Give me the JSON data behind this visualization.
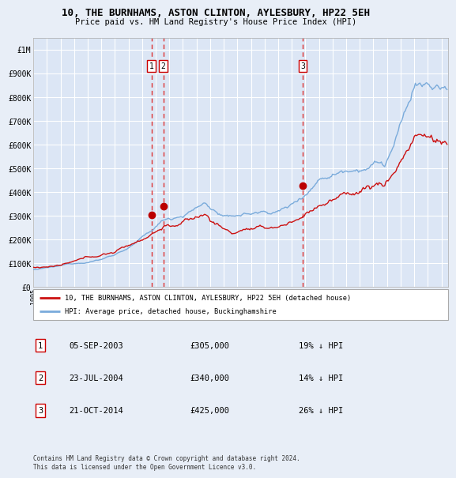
{
  "title": "10, THE BURNHAMS, ASTON CLINTON, AYLESBURY, HP22 5EH",
  "subtitle": "Price paid vs. HM Land Registry's House Price Index (HPI)",
  "background_color": "#e8eef7",
  "plot_bg_color": "#dce6f5",
  "grid_color": "#ffffff",
  "ylim": [
    0,
    1050000
  ],
  "yticks": [
    0,
    100000,
    200000,
    300000,
    400000,
    500000,
    600000,
    700000,
    800000,
    900000,
    1000000
  ],
  "ytick_labels": [
    "£0",
    "£100K",
    "£200K",
    "£300K",
    "£400K",
    "£500K",
    "£600K",
    "£700K",
    "£800K",
    "£900K",
    "£1M"
  ],
  "xlim_start": 1995.0,
  "xlim_end": 2025.5,
  "sale1_date": 2003.68,
  "sale1_price": 305000,
  "sale2_date": 2004.56,
  "sale2_price": 340000,
  "sale3_date": 2014.8,
  "sale3_price": 425000,
  "hpi_color": "#7aabdb",
  "price_color": "#cc1111",
  "vline_color": "#dd3333",
  "marker_color": "#bb0000",
  "legend_price_label": "10, THE BURNHAMS, ASTON CLINTON, AYLESBURY, HP22 5EH (detached house)",
  "legend_hpi_label": "HPI: Average price, detached house, Buckinghamshire",
  "table_rows": [
    {
      "num": "1",
      "date": "05-SEP-2003",
      "price": "£305,000",
      "change": "19% ↓ HPI"
    },
    {
      "num": "2",
      "date": "23-JUL-2004",
      "price": "£340,000",
      "change": "14% ↓ HPI"
    },
    {
      "num": "3",
      "date": "21-OCT-2014",
      "price": "£425,000",
      "change": "26% ↓ HPI"
    }
  ],
  "footnote": "Contains HM Land Registry data © Crown copyright and database right 2024.\nThis data is licensed under the Open Government Licence v3.0."
}
